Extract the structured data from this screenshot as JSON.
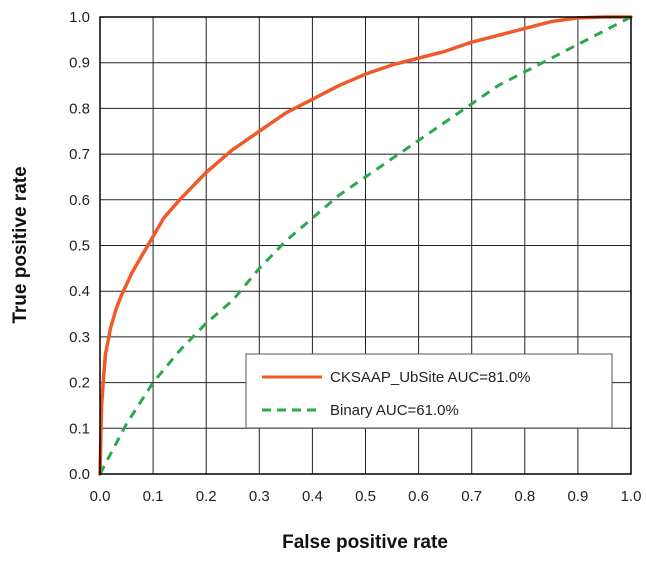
{
  "chart_data": {
    "type": "line",
    "title": "",
    "xlabel": "False positive rate",
    "ylabel": "True positive rate",
    "xlim": [
      0,
      1
    ],
    "ylim": [
      0,
      1
    ],
    "x_ticks": [
      "0.0",
      "0.1",
      "0.2",
      "0.3",
      "0.4",
      "0.5",
      "0.6",
      "0.7",
      "0.8",
      "0.9",
      "1.0"
    ],
    "y_ticks": [
      "0.0",
      "0.1",
      "0.2",
      "0.3",
      "0.4",
      "0.5",
      "0.6",
      "0.7",
      "0.8",
      "0.9",
      "1.0"
    ],
    "grid": true,
    "legend_position": "lower-right",
    "series": [
      {
        "name": "CKSAAP_UbSite AUC=81.0%",
        "color": "#f05a2b",
        "style": "solid",
        "points": [
          [
            0,
            0
          ],
          [
            0.003,
            0.15
          ],
          [
            0.006,
            0.2
          ],
          [
            0.01,
            0.26
          ],
          [
            0.02,
            0.32
          ],
          [
            0.03,
            0.36
          ],
          [
            0.04,
            0.39
          ],
          [
            0.06,
            0.44
          ],
          [
            0.08,
            0.48
          ],
          [
            0.1,
            0.52
          ],
          [
            0.12,
            0.56
          ],
          [
            0.15,
            0.6
          ],
          [
            0.2,
            0.66
          ],
          [
            0.25,
            0.71
          ],
          [
            0.3,
            0.75
          ],
          [
            0.35,
            0.79
          ],
          [
            0.4,
            0.82
          ],
          [
            0.45,
            0.85
          ],
          [
            0.5,
            0.875
          ],
          [
            0.55,
            0.895
          ],
          [
            0.6,
            0.91
          ],
          [
            0.65,
            0.925
          ],
          [
            0.7,
            0.945
          ],
          [
            0.75,
            0.96
          ],
          [
            0.8,
            0.975
          ],
          [
            0.85,
            0.99
          ],
          [
            0.9,
            0.998
          ],
          [
            0.95,
            1.0
          ],
          [
            1.0,
            1.0
          ]
        ]
      },
      {
        "name": "Binary AUC=61.0%",
        "color": "#2aa84a",
        "style": "dashed",
        "points": [
          [
            0,
            0
          ],
          [
            0.05,
            0.11
          ],
          [
            0.1,
            0.2
          ],
          [
            0.15,
            0.27
          ],
          [
            0.2,
            0.33
          ],
          [
            0.25,
            0.38
          ],
          [
            0.3,
            0.45
          ],
          [
            0.35,
            0.51
          ],
          [
            0.4,
            0.56
          ],
          [
            0.45,
            0.61
          ],
          [
            0.5,
            0.65
          ],
          [
            0.55,
            0.69
          ],
          [
            0.6,
            0.73
          ],
          [
            0.65,
            0.77
          ],
          [
            0.7,
            0.81
          ],
          [
            0.75,
            0.85
          ],
          [
            0.8,
            0.88
          ],
          [
            0.85,
            0.91
          ],
          [
            0.9,
            0.94
          ],
          [
            0.95,
            0.97
          ],
          [
            1.0,
            1.0
          ]
        ]
      }
    ]
  }
}
